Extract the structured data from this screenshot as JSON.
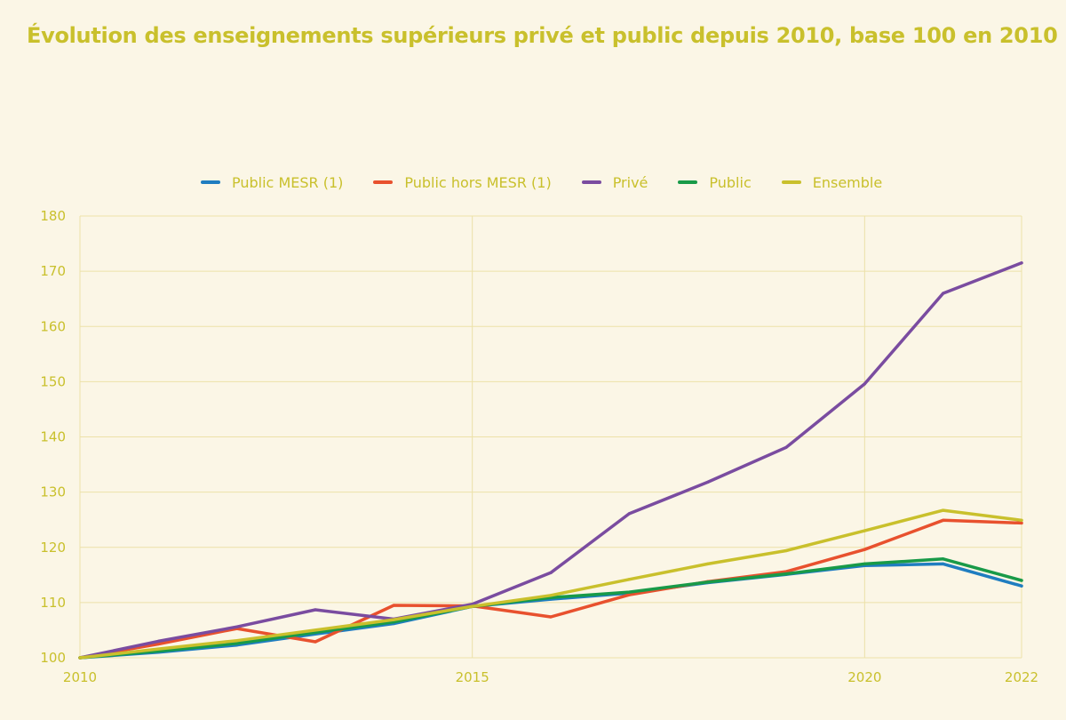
{
  "colors": {
    "accent": "#c9c02c",
    "grid": "#ece1a8",
    "background": "#fbf6e6"
  },
  "chart_data": {
    "type": "line",
    "title": "Évolution des enseignements supérieurs privé et public depuis 2010, base 100 en 2010",
    "xlabel": "",
    "ylabel": "",
    "x": [
      2010,
      2011,
      2012,
      2013,
      2014,
      2015,
      2016,
      2017,
      2018,
      2019,
      2020,
      2021,
      2022
    ],
    "x_ticks": [
      "2010",
      "2015",
      "2020",
      "2022"
    ],
    "y_ticks": [
      "100",
      "110",
      "120",
      "130",
      "140",
      "150",
      "160",
      "170",
      "180"
    ],
    "xlim": [
      2010,
      2022
    ],
    "ylim": [
      100,
      180
    ],
    "grid": "on",
    "legend_position": "top",
    "series": [
      {
        "name": "Public MESR (1)",
        "color": "#1f7dc0",
        "values": [
          100,
          101,
          102.3,
          104.3,
          106.2,
          109.3,
          110.6,
          111.7,
          113.6,
          115.1,
          116.7,
          117.0,
          113.0
        ]
      },
      {
        "name": "Public hors MESR (1)",
        "color": "#e8512e",
        "values": [
          100,
          102.5,
          105.3,
          102.9,
          109.5,
          109.4,
          107.4,
          111.4,
          113.8,
          115.6,
          119.6,
          124.9,
          124.4
        ]
      },
      {
        "name": "Privé",
        "color": "#7a4ca0",
        "values": [
          100,
          103,
          105.6,
          108.7,
          107.0,
          109.7,
          115.4,
          126.1,
          131.8,
          138.1,
          149.6,
          166.0,
          171.5
        ]
      },
      {
        "name": "Public",
        "color": "#189a48",
        "values": [
          100,
          101.2,
          102.6,
          104.6,
          106.5,
          109.3,
          110.9,
          111.9,
          113.7,
          115.2,
          117.0,
          117.9,
          114.0
        ]
      },
      {
        "name": "Ensemble",
        "color": "#c9c02c",
        "values": [
          100,
          101.6,
          103.1,
          105.0,
          106.9,
          109.3,
          111.3,
          114.2,
          117.0,
          119.4,
          123.0,
          126.7,
          124.9
        ]
      }
    ]
  }
}
